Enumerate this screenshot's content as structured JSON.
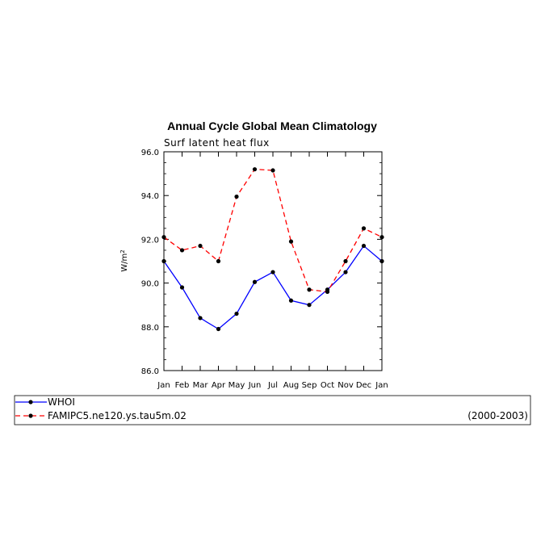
{
  "chart_data": {
    "type": "line",
    "title": "Annual Cycle Global Mean Climatology",
    "subtitle": "Surf latent heat flux",
    "ylabel": "W/m",
    "ylabel_sup": "2",
    "ylim": [
      86.0,
      96.0
    ],
    "yticks": [
      "86.0",
      "88.0",
      "90.0",
      "92.0",
      "94.0",
      "96.0"
    ],
    "categories": [
      "Jan",
      "Feb",
      "Mar",
      "Apr",
      "May",
      "Jun",
      "Jul",
      "Aug",
      "Sep",
      "Oct",
      "Nov",
      "Dec",
      "Jan"
    ],
    "series": [
      {
        "name": "WHOI",
        "color": "#0000ff",
        "dash": "solid",
        "values": [
          91.0,
          89.8,
          88.4,
          87.9,
          88.6,
          90.05,
          90.5,
          89.2,
          89.0,
          89.7,
          90.5,
          91.7,
          91.0
        ]
      },
      {
        "name": "FAMIPC5.ne120.ys.tau5m.02",
        "color": "#ff0000",
        "dash": "dashed",
        "values": [
          92.1,
          91.5,
          91.7,
          91.0,
          93.95,
          95.2,
          95.15,
          91.9,
          89.7,
          89.6,
          91.0,
          92.5,
          92.1
        ]
      }
    ],
    "grid": false,
    "legend": {
      "placement": "bottom",
      "period": "(2000-2003)"
    }
  }
}
